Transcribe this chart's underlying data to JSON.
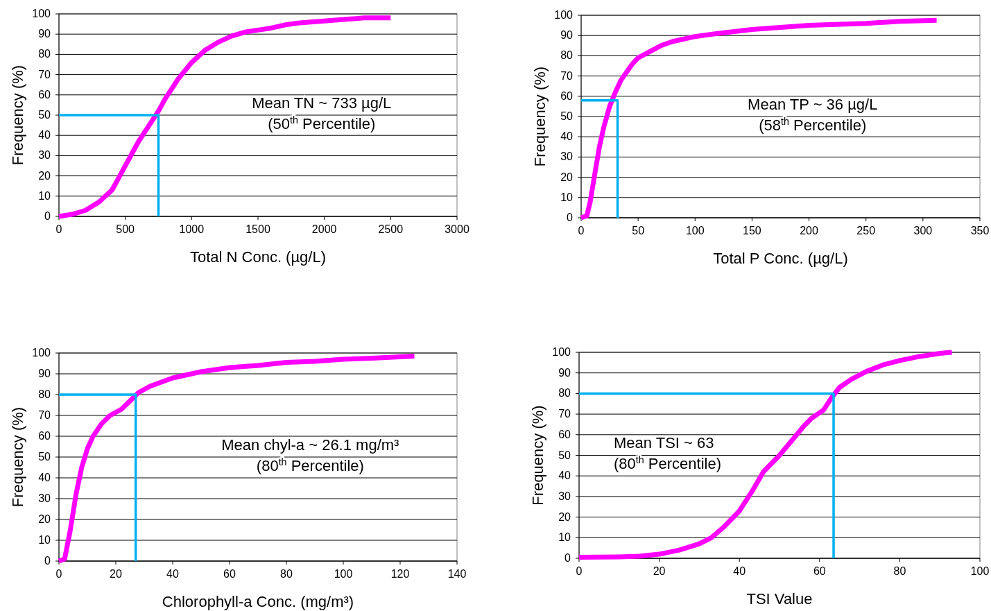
{
  "chart_data": [
    {
      "type": "line",
      "xlabel": "Total N Conc. (µg/L)",
      "ylabel": "Frequency (%)",
      "xlim": [
        0,
        3000
      ],
      "xticks": [
        0,
        500,
        1000,
        1500,
        2000,
        2500,
        3000
      ],
      "ylim": [
        0,
        100
      ],
      "yticks": [
        0,
        10,
        20,
        30,
        40,
        50,
        60,
        70,
        80,
        90,
        100
      ],
      "grid": "y",
      "annotations": [
        "Mean TN ~ 733 µg/L",
        "(50$^{th}$ Percentile)"
      ],
      "series": [
        {
          "color": "#ff00ff",
          "x": [
            0,
            100,
            200,
            300,
            400,
            500,
            600,
            700,
            750,
            800,
            900,
            1000,
            1100,
            1200,
            1300,
            1400,
            1500,
            1600,
            1700,
            1800,
            1900,
            2000,
            2100,
            2200,
            2300,
            2500
          ],
          "values": [
            0,
            1,
            3,
            7,
            13,
            25,
            37,
            47,
            52,
            58,
            68,
            76,
            82,
            86,
            89,
            91,
            92,
            93,
            94.5,
            95.5,
            96,
            96.5,
            97,
            97.5,
            98,
            98
          ]
        },
        {
          "color": "#00b0f0",
          "x": [
            0,
            750,
            750
          ],
          "values": [
            50,
            50,
            0
          ]
        }
      ]
    },
    {
      "type": "line",
      "xlabel": "Total P Conc. (µg/L)",
      "ylabel": "Frequency (%)",
      "xlim": [
        0,
        350
      ],
      "xticks": [
        0,
        50,
        100,
        150,
        200,
        250,
        300,
        350
      ],
      "ylim": [
        0,
        100
      ],
      "yticks": [
        0,
        10,
        20,
        30,
        40,
        50,
        60,
        70,
        80,
        90,
        100
      ],
      "grid": "y",
      "annotations": [
        "Mean TP ~ 36 µg/L",
        "(58$^{th}$ Percentile)"
      ],
      "series": [
        {
          "color": "#ff00ff",
          "x": [
            0,
            5,
            8,
            10,
            13,
            16,
            20,
            25,
            30,
            35,
            40,
            45,
            50,
            60,
            70,
            80,
            100,
            120,
            150,
            200,
            250,
            280,
            312
          ],
          "values": [
            0,
            1,
            8,
            15,
            25,
            35,
            45,
            55,
            62,
            68,
            72,
            76,
            79,
            82,
            85,
            87,
            89.5,
            91,
            93,
            95,
            96,
            97,
            97.5
          ]
        },
        {
          "color": "#00b0f0",
          "x": [
            0,
            32,
            32
          ],
          "values": [
            58,
            58,
            0
          ]
        }
      ]
    },
    {
      "type": "line",
      "xlabel": "Chlorophyll-a Conc. (mg/m³)",
      "ylabel": "Frequency (%)",
      "xlim": [
        0,
        140
      ],
      "xticks": [
        0,
        20,
        40,
        60,
        80,
        100,
        120,
        140
      ],
      "ylim": [
        0,
        100
      ],
      "yticks": [
        0,
        10,
        20,
        30,
        40,
        50,
        60,
        70,
        80,
        90,
        100
      ],
      "grid": "y",
      "annotations": [
        "Mean chyl-a ~ 26.1 mg/m³",
        "(80$^{th}$ Percentile)"
      ],
      "series": [
        {
          "color": "#ff00ff",
          "x": [
            0,
            2,
            4,
            6,
            8,
            10,
            12,
            15,
            18,
            22,
            25,
            28,
            32,
            40,
            50,
            60,
            70,
            80,
            90,
            100,
            110,
            125
          ],
          "values": [
            0,
            1,
            15,
            32,
            45,
            54,
            60,
            66,
            70,
            73,
            77,
            81,
            84,
            88,
            91,
            93,
            94,
            95.5,
            96,
            97,
            97.5,
            98.5
          ]
        },
        {
          "color": "#00b0f0",
          "x": [
            0,
            27,
            27
          ],
          "values": [
            80,
            80,
            0
          ]
        }
      ]
    },
    {
      "type": "line",
      "xlabel": "TSI Value",
      "ylabel": "Frequency (%)",
      "xlim": [
        0,
        100
      ],
      "xticks": [
        0,
        20,
        40,
        60,
        80,
        100
      ],
      "ylim": [
        0,
        100
      ],
      "yticks": [
        0,
        10,
        20,
        30,
        40,
        50,
        60,
        70,
        80,
        90,
        100
      ],
      "grid": "y",
      "annotations": [
        "Mean TSI ~ 63",
        "(80$^{th}$ Percentile)"
      ],
      "series": [
        {
          "color": "#ff00ff",
          "x": [
            0,
            10,
            15,
            20,
            25,
            30,
            33,
            36,
            40,
            43,
            46,
            50,
            53,
            56,
            58,
            61,
            63,
            65,
            68,
            72,
            76,
            80,
            85,
            90,
            93
          ],
          "values": [
            0.5,
            0.7,
            1,
            2,
            4,
            7,
            10,
            15,
            23,
            32,
            42,
            50,
            57,
            64,
            68,
            72,
            78,
            83,
            87,
            91,
            94,
            96,
            98,
            99.5,
            100
          ]
        },
        {
          "color": "#00b0f0",
          "x": [
            0,
            63.5,
            63.5
          ],
          "values": [
            80,
            80,
            0
          ]
        }
      ]
    }
  ]
}
